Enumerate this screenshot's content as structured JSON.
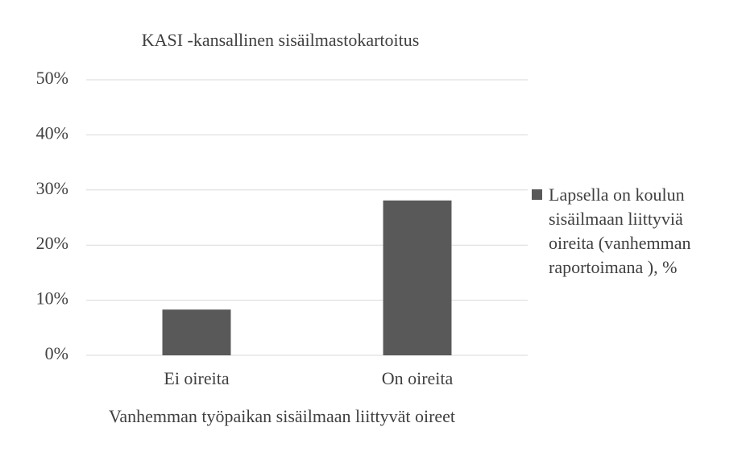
{
  "chart_data": {
    "type": "bar",
    "title": "KASI -kansallinen sisäilmastokartoitus",
    "x_label": "Vanhemman työpaikan sisäilmaan liittyvät oireet",
    "categories": [
      "Ei oireita",
      "On oireita"
    ],
    "series": [
      {
        "name": "Lapsella on koulun sisäilmaan liittyviä oireita (vanhemman raportoimana ), %",
        "color": "#595959",
        "values": [
          8.3,
          28.1
        ]
      }
    ],
    "ylim": [
      0,
      50
    ],
    "yticks": [
      {
        "value": 0,
        "label": "0%"
      },
      {
        "value": 10,
        "label": "10%"
      },
      {
        "value": 20,
        "label": "20%"
      },
      {
        "value": 30,
        "label": "30%"
      },
      {
        "value": 40,
        "label": "40%"
      },
      {
        "value": 50,
        "label": "50%"
      }
    ],
    "grid": true,
    "legend": "right"
  }
}
